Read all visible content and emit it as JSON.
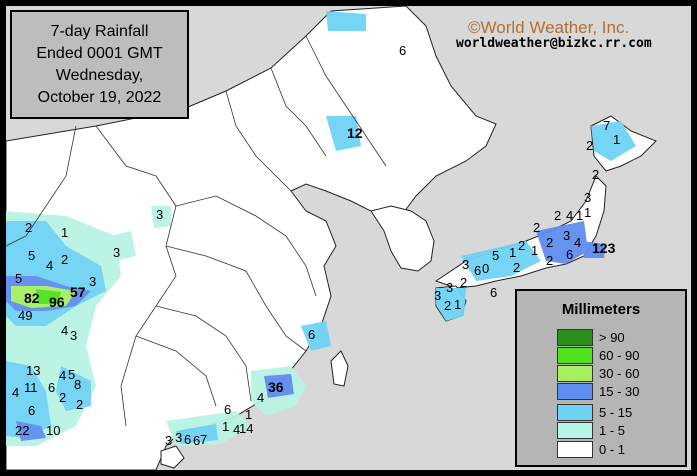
{
  "title": {
    "lines": [
      "7-day Rainfall",
      "Ended 0001 GMT",
      "Wednesday,",
      "October 19, 2022"
    ]
  },
  "credit": {
    "copyright": "©World Weather, Inc.",
    "email": "worldweather@bizkc.rr.com"
  },
  "legend": {
    "title": "Millimeters",
    "items": [
      {
        "label": "> 90",
        "color": "#2c8f1b"
      },
      {
        "label": "60 - 90",
        "color": "#4fe21b"
      },
      {
        "label": "30 - 60",
        "color": "#a6ef62"
      },
      {
        "label": "15 - 30",
        "color": "#5f8df0"
      },
      {
        "label": "5 - 15",
        "color": "#6fd2f4"
      },
      {
        "label": "1 - 5",
        "color": "#b8f4e4"
      },
      {
        "label": "0 - 1",
        "color": "#ffffff"
      }
    ]
  },
  "rain_values": [
    "6",
    "12",
    "3",
    "3",
    "2",
    "1",
    "5",
    "4",
    "2",
    "5",
    "3",
    "82",
    "96",
    "57",
    "49",
    "4",
    "3",
    "13",
    "4",
    "5",
    "11",
    "6",
    "8",
    "2",
    "4",
    "6",
    "2",
    "22",
    "10",
    "36",
    "6",
    "1",
    "6",
    "3",
    "6",
    "1",
    "4",
    "14",
    "3",
    "6",
    "7",
    "4",
    "7",
    "1",
    "2",
    "2",
    "3",
    "1",
    "2",
    "4",
    "1",
    "2",
    "3",
    "2",
    "4",
    "6",
    "2",
    "1",
    "1",
    "2",
    "5",
    "0",
    "6",
    "3",
    "2",
    "2",
    "3",
    "3",
    "2",
    "1",
    "6",
    "123"
  ]
}
